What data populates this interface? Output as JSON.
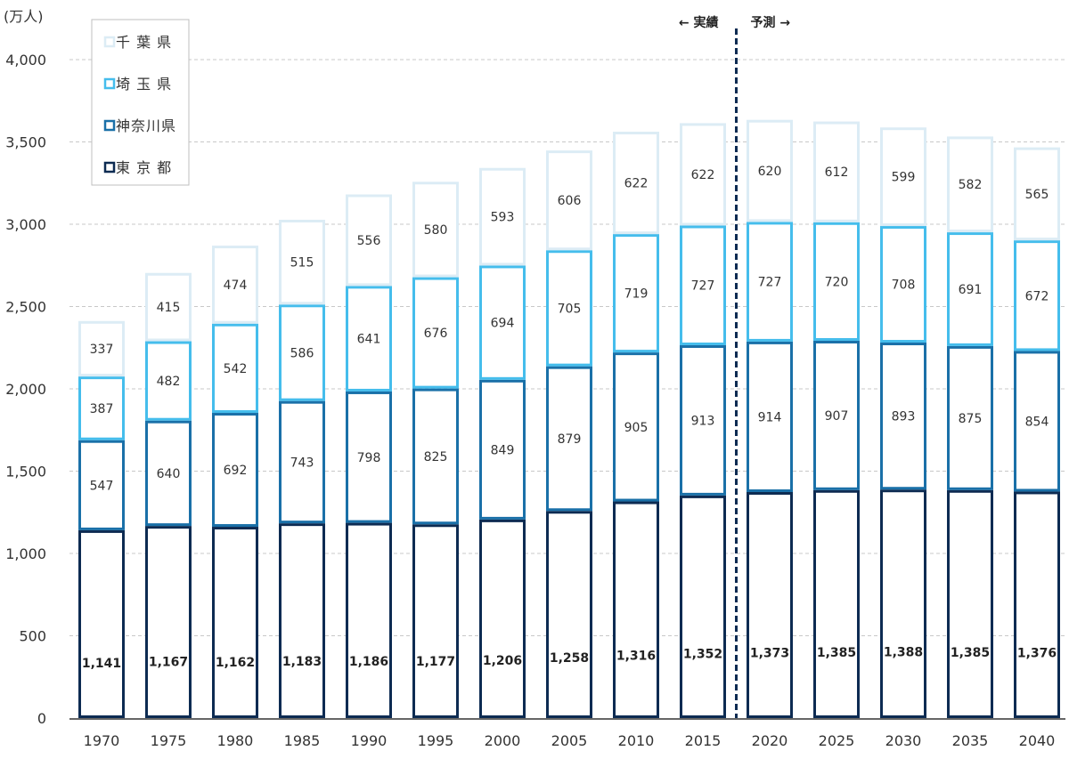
{
  "chart_data": {
    "type": "bar",
    "stacked": true,
    "ylabel": "(万人)",
    "ylim": [
      0,
      4000
    ],
    "yticks": [
      0,
      500,
      1000,
      1500,
      2000,
      2500,
      3000,
      3500,
      4000
    ],
    "ytick_labels": [
      "0",
      "500",
      "1,000",
      "1,500",
      "2,000",
      "2,500",
      "3,000",
      "3,500",
      "4,000"
    ],
    "grid": "horizontal-dashed",
    "legend_position": "top-left",
    "categories": [
      "1970",
      "1975",
      "1980",
      "1985",
      "1990",
      "1995",
      "2000",
      "2005",
      "2010",
      "2015",
      "2020",
      "2025",
      "2030",
      "2035",
      "2040"
    ],
    "series": [
      {
        "name": "東 京 都",
        "color": "#0d2b52",
        "bold_labels": true,
        "values": [
          1141,
          1167,
          1162,
          1183,
          1186,
          1177,
          1206,
          1258,
          1316,
          1352,
          1373,
          1385,
          1388,
          1385,
          1376
        ],
        "labels": [
          "1,141",
          "1,167",
          "1,162",
          "1,183",
          "1,186",
          "1,177",
          "1,206",
          "1,258",
          "1,316",
          "1,352",
          "1,373",
          "1,385",
          "1,388",
          "1,385",
          "1,376"
        ]
      },
      {
        "name": "神奈川県",
        "color": "#1a70a8",
        "bold_labels": false,
        "values": [
          547,
          640,
          692,
          743,
          798,
          825,
          849,
          879,
          905,
          913,
          914,
          907,
          893,
          875,
          854
        ],
        "labels": [
          "547",
          "640",
          "692",
          "743",
          "798",
          "825",
          "849",
          "879",
          "905",
          "913",
          "914",
          "907",
          "893",
          "875",
          "854"
        ]
      },
      {
        "name": "埼 玉 県",
        "color": "#45bdec",
        "bold_labels": false,
        "values": [
          387,
          482,
          542,
          586,
          641,
          676,
          694,
          705,
          719,
          727,
          727,
          720,
          708,
          691,
          672
        ],
        "labels": [
          "387",
          "482",
          "542",
          "586",
          "641",
          "676",
          "694",
          "705",
          "719",
          "727",
          "727",
          "720",
          "708",
          "691",
          "672"
        ]
      },
      {
        "name": "千 葉 県",
        "color": "#dcecf5",
        "bold_labels": false,
        "values": [
          337,
          415,
          474,
          515,
          556,
          580,
          593,
          606,
          622,
          622,
          620,
          612,
          599,
          582,
          565
        ],
        "labels": [
          "337",
          "415",
          "474",
          "515",
          "556",
          "580",
          "593",
          "606",
          "622",
          "622",
          "620",
          "612",
          "599",
          "582",
          "565"
        ]
      }
    ],
    "legend_order": [
      "千 葉 県",
      "埼 玉 県",
      "神奈川県",
      "東 京 都"
    ],
    "annotations": {
      "divider_between": [
        "2015",
        "2020"
      ],
      "actual_label": "←  実績",
      "forecast_label": "予測  →"
    }
  }
}
